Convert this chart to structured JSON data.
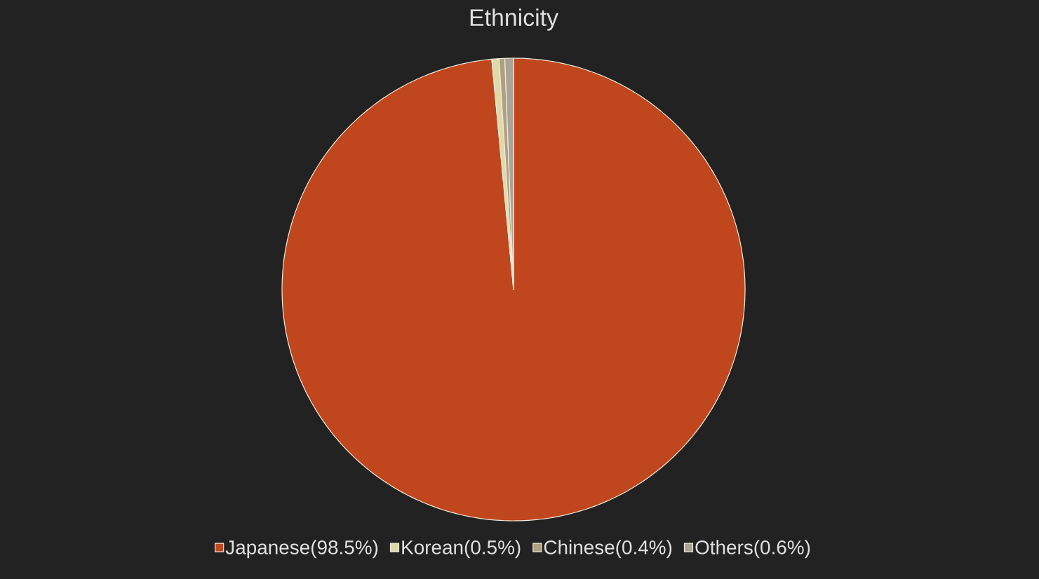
{
  "chart_data": {
    "type": "pie",
    "title": "Ethnicity",
    "categories": [
      "Japanese(98.5%)",
      "Korean(0.5%)",
      "Chinese(0.4%)",
      "Others(0.6%)"
    ],
    "values": [
      98.5,
      0.5,
      0.4,
      0.6
    ],
    "colors": [
      "#c0461e",
      "#ded9a8",
      "#b0a080",
      "#a8a498"
    ],
    "legend": "bottom"
  }
}
